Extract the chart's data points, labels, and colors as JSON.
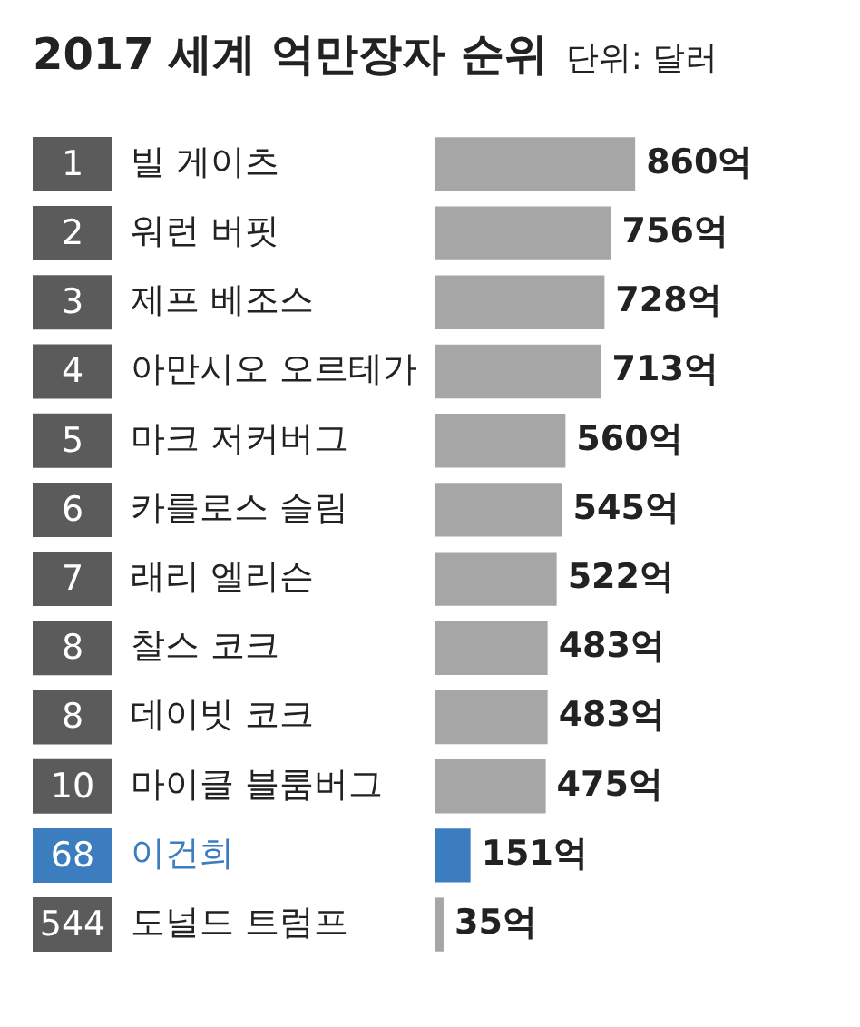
{
  "chart_data": {
    "type": "bar",
    "orientation": "horizontal",
    "title": "2017 세계 억만장자 순위",
    "subtitle": "단위: 달러",
    "categories": [
      "빌 게이츠",
      "워런 버핏",
      "제프 베조스",
      "아만시오 오르테가",
      "마크 저커버그",
      "카를로스 슬림",
      "래리 엘리슨",
      "찰스 코크",
      "데이빗 코크",
      "마이클 블룸버그",
      "이건희",
      "도널드 트럼프"
    ],
    "values": [
      860,
      756,
      728,
      713,
      560,
      545,
      522,
      483,
      483,
      475,
      151,
      35
    ],
    "colors": [
      "#a6a6a6",
      "#a6a6a6",
      "#a6a6a6",
      "#a6a6a6",
      "#a6a6a6",
      "#a6a6a6",
      "#a6a6a6",
      "#a6a6a6",
      "#a6a6a6",
      "#a6a6a6",
      "#3b7dbf",
      "#a6a6a6"
    ],
    "value_labels": [
      "860억",
      "756억",
      "728억",
      "713억",
      "560억",
      "545억",
      "522억",
      "483억",
      "483억",
      "475억",
      "151억",
      "35억"
    ],
    "annotations": [
      "1",
      "2",
      "3",
      "4",
      "5",
      "6",
      "7",
      "8",
      "8",
      "10",
      "68",
      "544"
    ],
    "grid": false,
    "legend": false
  }
}
